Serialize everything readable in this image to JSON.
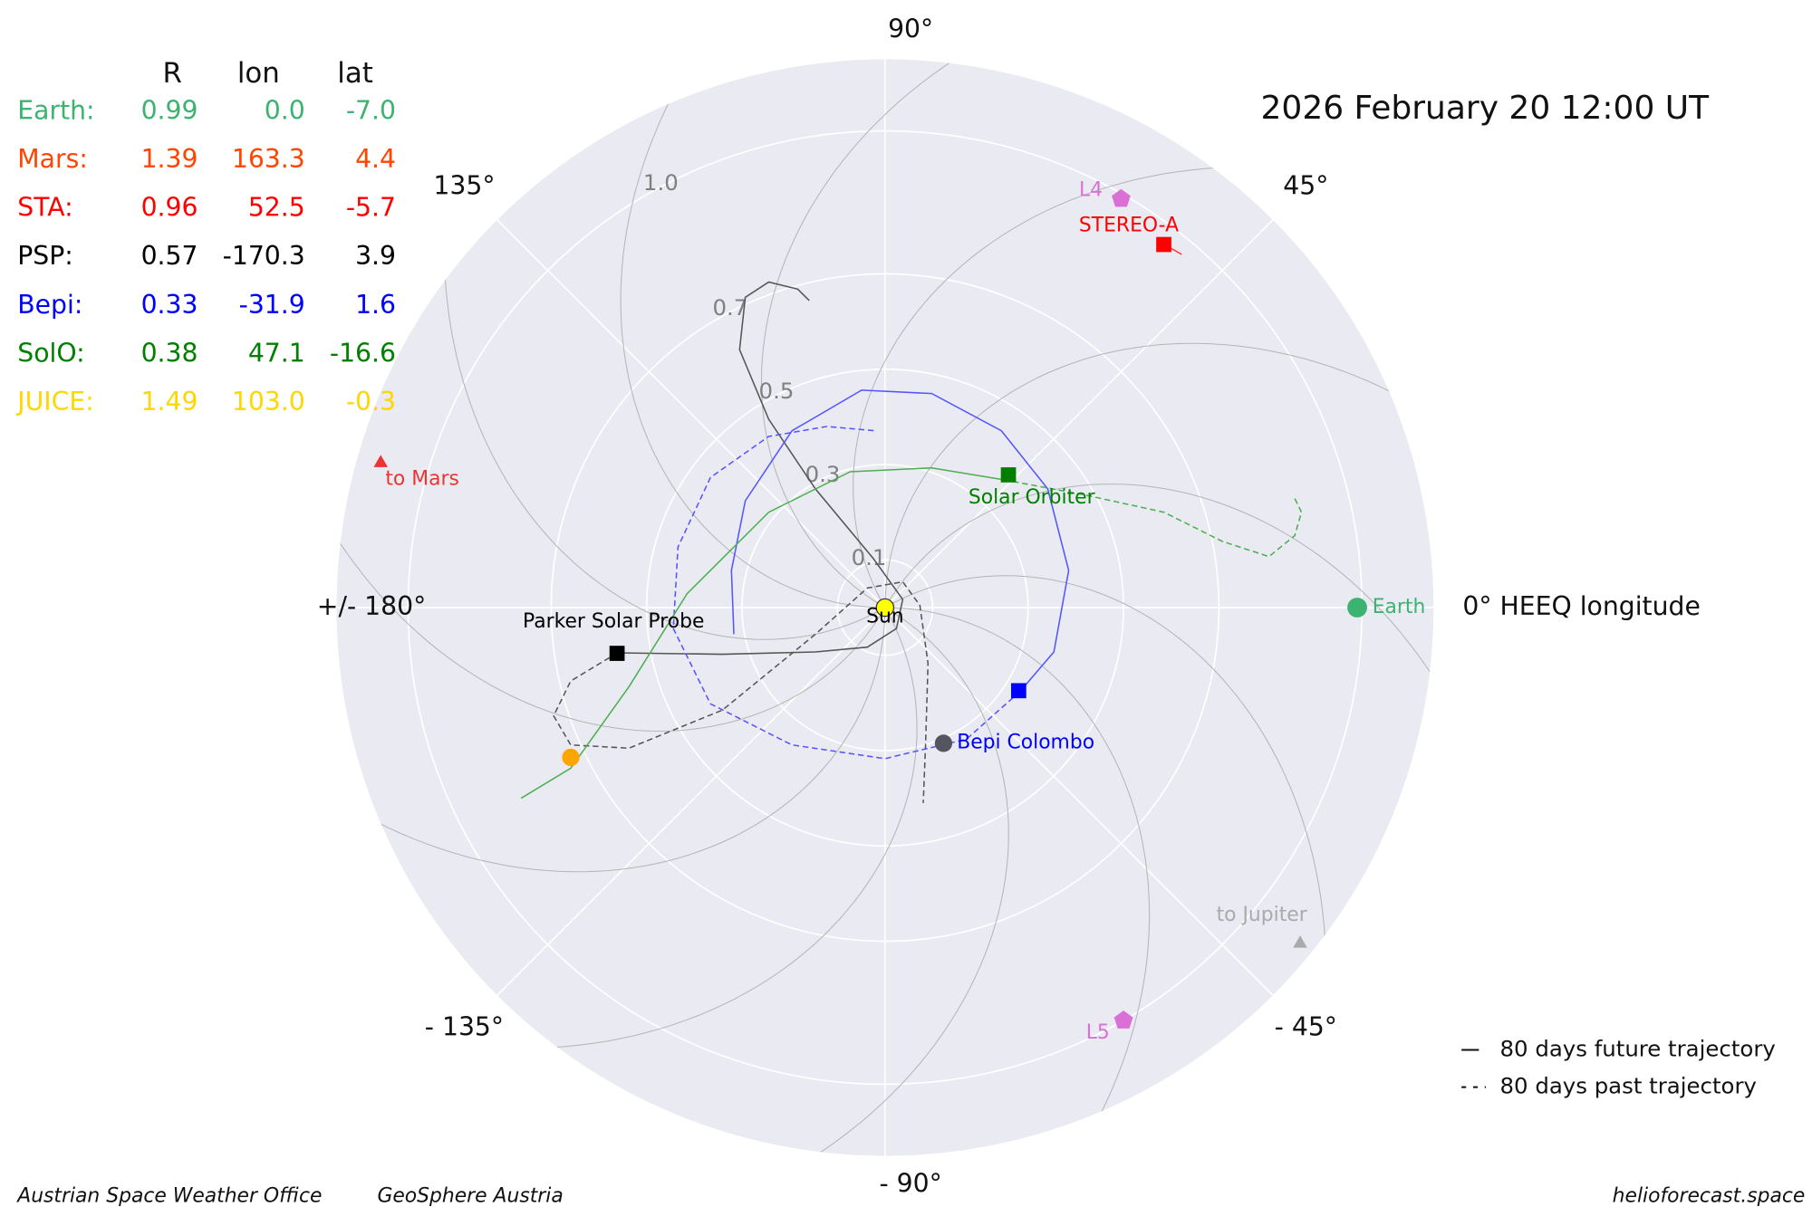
{
  "chart_data": {
    "type": "polar",
    "title": "2026 February 20  12:00 UT",
    "rlim": [
      0,
      1.15
    ],
    "rticks": [
      0.1,
      0.3,
      0.5,
      0.7,
      {
        "value": 1,
        "label": "1.0"
      }
    ],
    "thetaticks": [
      {
        "value": 0,
        "label": "0° HEEQ longitude"
      },
      {
        "value": 45,
        "label": "45°"
      },
      {
        "value": 90,
        "label": "90°"
      },
      {
        "value": 135,
        "label": "135°"
      },
      {
        "value": 180,
        "label": "+/- 180°"
      },
      {
        "value": -135,
        "label": "- 135°"
      },
      {
        "value": -90,
        "label": "- 90°"
      },
      {
        "value": -45,
        "label": "- 45°"
      }
    ],
    "grid": true,
    "table": {
      "columns": [
        "R",
        "lon",
        "lat"
      ],
      "rows": [
        {
          "name": "Earth:",
          "color": "#3cb371",
          "values": [
            0.99,
            0,
            -7
          ],
          "value_labels": [
            "0.99",
            "0.0",
            "-7.0"
          ]
        },
        {
          "name": "Mars:",
          "color": "#ff4500",
          "values": [
            1.39,
            163.3,
            4.4
          ],
          "value_labels": [
            "1.39",
            "163.3",
            "4.4"
          ]
        },
        {
          "name": "STA:",
          "color": "#ff0000",
          "values": [
            0.96,
            52.5,
            -5.7
          ],
          "value_labels": [
            "0.96",
            "52.5",
            "-5.7"
          ]
        },
        {
          "name": "PSP:",
          "color": "#000000",
          "values": [
            0.57,
            -170.3,
            3.9
          ],
          "value_labels": [
            "0.57",
            "-170.3",
            "3.9"
          ]
        },
        {
          "name": "Bepi:",
          "color": "#0000ff",
          "values": [
            0.33,
            -31.9,
            1.6
          ],
          "value_labels": [
            "0.33",
            "-31.9",
            "1.6"
          ]
        },
        {
          "name": "SolO:",
          "color": "#008000",
          "values": [
            0.38,
            47.1,
            -16.6
          ],
          "value_labels": [
            "0.38",
            "47.1",
            "-16.6"
          ]
        },
        {
          "name": "JUICE:",
          "color": "#ffd700",
          "values": [
            1.49,
            103,
            -0.3
          ],
          "value_labels": [
            "1.49",
            "103.0",
            "-0.3"
          ]
        }
      ]
    },
    "objects": [
      {
        "label": "Sun",
        "marker": "circle",
        "color": "#ffff00",
        "label_color": "#000000",
        "r": 0,
        "lon": 0
      },
      {
        "label": "Earth",
        "marker": "circle",
        "color": "#3cb371",
        "r": 0.99,
        "lon": 0
      },
      {
        "label": "STEREO-A",
        "marker": "square",
        "color": "#ff0000",
        "r": 0.96,
        "lon": 52.5
      },
      {
        "label": "Solar Orbiter",
        "marker": "square",
        "color": "#008000",
        "r": 0.38,
        "lon": 47.1
      },
      {
        "label": "Bepi Colombo",
        "marker": "square",
        "color": "#0000ff",
        "r": 0.33,
        "lon": -31.9
      },
      {
        "label": "Parker Solar Probe",
        "marker": "square",
        "color": "#000000",
        "r": 0.57,
        "lon": -170.3
      },
      {
        "marker": "circle",
        "color": "#555560",
        "r": 0.31,
        "lon": -66.7
      },
      {
        "marker": "circle",
        "color": "#ffa500",
        "r": 0.73,
        "lon": -154.5
      },
      {
        "label": "L4",
        "marker": "pentagon",
        "color": "#da70d6",
        "r": 0.99,
        "lon": 60
      },
      {
        "label": "L5",
        "marker": "pentagon",
        "color": "#da70d6",
        "r": 1.0,
        "lon": -60
      },
      {
        "label": "to Mars",
        "marker": "triangle",
        "color": "#ee3333",
        "r": 1.1,
        "lon": 164
      },
      {
        "label": "to Jupiter",
        "marker": "triangle",
        "color": "#aaaaaa",
        "r": 1.12,
        "lon": -39
      }
    ],
    "trajectories": [
      {
        "color": "#555555",
        "future": {
          "x": [
            -0.561,
            -0.341,
            -0.146,
            -0.037,
            0.024,
            0.037,
            -0.024,
            -0.146,
            -0.244,
            -0.305,
            -0.293,
            -0.244,
            -0.183,
            -0.159
          ],
          "y": [
            -0.095,
            -0.098,
            -0.093,
            -0.083,
            -0.044,
            0.017,
            0.102,
            0.249,
            0.395,
            0.541,
            0.651,
            0.683,
            0.668,
            0.644
          ]
        },
        "past": {
          "x": [
            -0.561,
            -0.659,
            -0.695,
            -0.659,
            -0.537,
            -0.341,
            -0.146,
            -0.037,
            0.037,
            0.073,
            0.09,
            0.085,
            0.08
          ],
          "y": [
            -0.095,
            -0.154,
            -0.227,
            -0.288,
            -0.295,
            -0.215,
            -0.056,
            0.041,
            0.054,
            0.005,
            -0.117,
            -0.288,
            -0.41
          ]
        }
      },
      {
        "color": "#5555ff",
        "future": {
          "x": [
            0.283,
            0.354,
            0.385,
            0.341,
            0.244,
            0.098,
            -0.049,
            -0.195,
            -0.293,
            -0.322,
            -0.317
          ],
          "y": [
            -0.176,
            -0.093,
            0.078,
            0.249,
            0.371,
            0.449,
            0.456,
            0.371,
            0.224,
            0.078,
            -0.056
          ]
        },
        "past": {
          "x": [
            0.283,
            0.171,
            0,
            -0.195,
            -0.366,
            -0.444,
            -0.434,
            -0.366,
            -0.244,
            -0.122,
            -0.02
          ],
          "y": [
            -0.176,
            -0.276,
            -0.317,
            -0.288,
            -0.202,
            -0.044,
            0.127,
            0.273,
            0.359,
            0.38,
            0.371
          ]
        }
      },
      {
        "color": "#4caf50",
        "future": {
          "x": [
            0.249,
            0.098,
            -0.073,
            -0.244,
            -0.415,
            -0.537,
            -0.659,
            -0.763
          ],
          "y": [
            0.268,
            0.293,
            0.285,
            0.2,
            0.029,
            -0.166,
            -0.337,
            -0.4
          ]
        },
        "past": {
          "x": [
            0.249,
            0.415,
            0.585,
            0.707,
            0.805,
            0.859,
            0.873,
            0.859
          ],
          "y": [
            0.268,
            0.237,
            0.2,
            0.139,
            0.107,
            0.151,
            0.2,
            0.229
          ]
        }
      },
      {
        "color": "#ff3333",
        "future": {
          "x": [
            0.583,
            0.622
          ],
          "y": [
            0.763,
            0.741
          ]
        }
      }
    ],
    "legend": [
      {
        "label": "80 days future trajectory",
        "linestyle": "solid"
      },
      {
        "label": "80 days past trajectory",
        "linestyle": "dashed"
      }
    ],
    "footer_left": [
      "Austrian Space Weather Office",
      "GeoSphere Austria"
    ],
    "footer_right": "helioforecast.space"
  }
}
